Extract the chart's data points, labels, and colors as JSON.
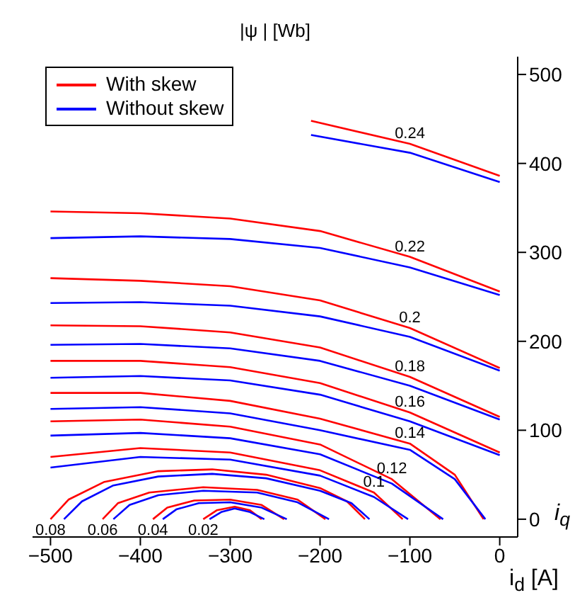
{
  "chart_data": {
    "type": "line",
    "title": "|ψ | [Wb]",
    "xlabel": "i$_{d}$ [A]",
    "ylabel": "i$_{q}$",
    "xlim": [
      -520,
      20
    ],
    "ylim": [
      -20,
      520
    ],
    "xticks": [
      -500,
      -400,
      -300,
      -200,
      -100,
      0
    ],
    "yticks": [
      0,
      100,
      200,
      300,
      400,
      500
    ],
    "grid": false,
    "legend": "top left",
    "marker": "none",
    "line_style": "solid",
    "series": [
      {
        "name": "With skew",
        "color": "#ff0000",
        "x": [
          -210,
          -100,
          0
        ],
        "values": [
          448,
          422,
          386
        ]
      },
      {
        "name": "Without skew",
        "color": "#0000ff",
        "x": [
          -210,
          -100,
          0
        ],
        "values": [
          432,
          412,
          379
        ]
      },
      {
        "color": "#ff0000",
        "x": [
          -500,
          -400,
          -300,
          -200,
          -100,
          0
        ],
        "values": [
          346,
          344,
          338,
          324,
          295,
          256
        ]
      },
      {
        "color": "#0000ff",
        "x": [
          -500,
          -400,
          -300,
          -200,
          -100,
          0
        ],
        "values": [
          316,
          318,
          315,
          305,
          283,
          252
        ]
      },
      {
        "color": "#ff0000",
        "x": [
          -500,
          -400,
          -300,
          -200,
          -100,
          0
        ],
        "values": [
          271,
          268,
          262,
          246,
          215,
          170
        ]
      },
      {
        "color": "#0000ff",
        "x": [
          -500,
          -400,
          -300,
          -200,
          -100,
          0
        ],
        "values": [
          243,
          244,
          240,
          228,
          205,
          167
        ]
      },
      {
        "color": "#ff0000",
        "x": [
          -500,
          -400,
          -300,
          -200,
          -100,
          0
        ],
        "values": [
          218,
          217,
          210,
          193,
          160,
          115
        ]
      },
      {
        "color": "#0000ff",
        "x": [
          -500,
          -400,
          -300,
          -200,
          -100,
          0
        ],
        "values": [
          196,
          197,
          192,
          178,
          150,
          112
        ]
      },
      {
        "color": "#ff0000",
        "x": [
          -500,
          -400,
          -300,
          -200,
          -100,
          0
        ],
        "values": [
          178,
          178,
          171,
          153,
          120,
          75
        ]
      },
      {
        "color": "#0000ff",
        "x": [
          -500,
          -400,
          -300,
          -200,
          -100,
          0
        ],
        "values": [
          159,
          161,
          156,
          140,
          110,
          72
        ]
      },
      {
        "color": "#ff0000",
        "x": [
          -500,
          -400,
          -300,
          -200,
          -100,
          -50,
          -18
        ],
        "values": [
          142,
          142,
          133,
          113,
          85,
          50,
          0
        ]
      },
      {
        "color": "#0000ff",
        "x": [
          -500,
          -400,
          -300,
          -200,
          -100,
          -50,
          -16
        ],
        "values": [
          124,
          126,
          119,
          100,
          78,
          45,
          0
        ]
      },
      {
        "color": "#ff0000",
        "x": [
          -500,
          -400,
          -300,
          -200,
          -120,
          -66
        ],
        "values": [
          110,
          112,
          104,
          84,
          45,
          0
        ]
      },
      {
        "color": "#0000ff",
        "x": [
          -500,
          -400,
          -300,
          -200,
          -120,
          -63
        ],
        "values": [
          94,
          97,
          91,
          73,
          40,
          0
        ]
      },
      {
        "color": "#ff0000",
        "x": [
          -500,
          -400,
          -300,
          -200,
          -140,
          -108
        ],
        "values": [
          70,
          80,
          75,
          55,
          30,
          0
        ]
      },
      {
        "color": "#0000ff",
        "x": [
          -500,
          -400,
          -300,
          -200,
          -140,
          -102
        ],
        "values": [
          58,
          70,
          67,
          49,
          25,
          0
        ]
      },
      {
        "color": "#ff0000",
        "x": [
          -500,
          -480,
          -440,
          -380,
          -320,
          -260,
          -200,
          -170,
          -150
        ],
        "values": [
          0,
          22,
          42,
          54,
          56,
          50,
          35,
          20,
          0
        ]
      },
      {
        "color": "#0000ff",
        "x": [
          -485,
          -465,
          -430,
          -380,
          -320,
          -260,
          -200,
          -165,
          -145
        ],
        "values": [
          0,
          20,
          38,
          48,
          51,
          46,
          32,
          18,
          0
        ]
      },
      {
        "color": "#ff0000",
        "x": [
          -442,
          -425,
          -390,
          -330,
          -270,
          -225,
          -194
        ],
        "values": [
          0,
          18,
          30,
          36,
          33,
          22,
          0
        ]
      },
      {
        "color": "#0000ff",
        "x": [
          -430,
          -412,
          -380,
          -330,
          -270,
          -225,
          -190
        ],
        "values": [
          0,
          16,
          27,
          32,
          30,
          19,
          0
        ]
      },
      {
        "color": "#ff0000",
        "x": [
          -386,
          -370,
          -340,
          -300,
          -265,
          -240
        ],
        "values": [
          0,
          13,
          21,
          22,
          16,
          0
        ]
      },
      {
        "color": "#0000ff",
        "x": [
          -375,
          -360,
          -335,
          -300,
          -265,
          -237
        ],
        "values": [
          0,
          11,
          18,
          19,
          13,
          0
        ]
      },
      {
        "color": "#ff0000",
        "x": [
          -330,
          -315,
          -295,
          -278,
          -265
        ],
        "values": [
          0,
          10,
          14,
          10,
          0
        ]
      },
      {
        "color": "#0000ff",
        "x": [
          -323,
          -310,
          -295,
          -278,
          -262
        ],
        "values": [
          0,
          8,
          12,
          8,
          0
        ]
      }
    ],
    "annotations": [
      {
        "text": "0.24",
        "x": -100,
        "y": 422
      },
      {
        "text": "0.22",
        "x": -100,
        "y": 295
      },
      {
        "text": "0.2",
        "x": -100,
        "y": 215
      },
      {
        "text": "0.18",
        "x": -100,
        "y": 160
      },
      {
        "text": "0.16",
        "x": -100,
        "y": 120
      },
      {
        "text": "0.14",
        "x": -100,
        "y": 85
      },
      {
        "text": "0.12",
        "x": -120,
        "y": 45
      },
      {
        "text": "0.1",
        "x": -140,
        "y": 30
      },
      {
        "text": "0.08",
        "x": -500,
        "y": 0
      },
      {
        "text": "0.06",
        "x": -442,
        "y": 0
      },
      {
        "text": "0.04",
        "x": -386,
        "y": 0
      },
      {
        "text": "0.02",
        "x": -330,
        "y": 0
      }
    ]
  }
}
